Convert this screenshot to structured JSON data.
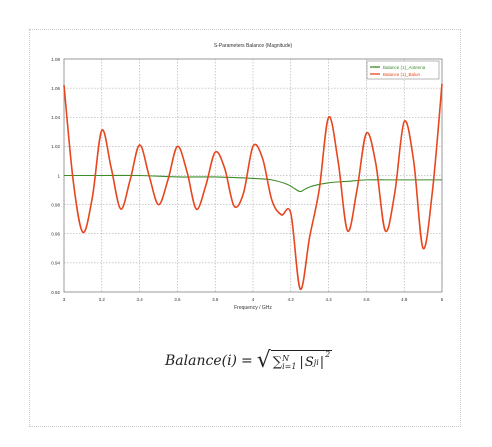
{
  "chart_data": {
    "type": "line",
    "title": "S-Parameters Balance (Magnitude)",
    "xlabel": "Frequency / GHz",
    "ylabel": "",
    "xlim": [
      3,
      5
    ],
    "ylim": [
      0.92,
      1.08
    ],
    "xticks": [
      "3",
      "3.2",
      "3.4",
      "3.6",
      "3.8",
      "4",
      "4.2",
      "4.4",
      "4.6",
      "4.8",
      "5"
    ],
    "yticks": [
      "0.92",
      "0.94",
      "0.96",
      "0.98",
      "1",
      "1.02",
      "1.04",
      "1.06",
      "1.08"
    ],
    "grid": true,
    "legend_position": "top-right",
    "series": [
      {
        "name": "Balance (1)_Antenna",
        "color": "#3c8c28",
        "x": [
          3.0,
          3.2,
          3.4,
          3.6,
          3.8,
          4.0,
          4.1,
          4.18,
          4.22,
          4.25,
          4.28,
          4.32,
          4.4,
          4.5,
          4.6,
          4.7,
          4.8,
          4.9,
          5.0
        ],
        "y": [
          1.0,
          1.0,
          1.0,
          0.999,
          0.999,
          0.998,
          0.997,
          0.994,
          0.991,
          0.989,
          0.991,
          0.993,
          0.995,
          0.996,
          0.997,
          0.997,
          0.997,
          0.997,
          0.997
        ]
      },
      {
        "name": "Balance (1)_Balun",
        "color": "#e8461e",
        "x": [
          3.0,
          3.05,
          3.1,
          3.15,
          3.2,
          3.25,
          3.3,
          3.35,
          3.4,
          3.45,
          3.5,
          3.55,
          3.6,
          3.65,
          3.7,
          3.75,
          3.8,
          3.85,
          3.9,
          3.95,
          4.0,
          4.05,
          4.1,
          4.15,
          4.2,
          4.25,
          4.3,
          4.35,
          4.4,
          4.45,
          4.5,
          4.55,
          4.6,
          4.65,
          4.7,
          4.75,
          4.8,
          4.85,
          4.9,
          4.95,
          5.0
        ],
        "y": [
          1.062,
          0.995,
          0.961,
          0.985,
          1.031,
          1.005,
          0.977,
          0.997,
          1.021,
          1.0,
          0.98,
          0.997,
          1.02,
          1.003,
          0.977,
          0.993,
          1.016,
          1.005,
          0.979,
          0.988,
          1.02,
          1.012,
          0.983,
          0.973,
          0.974,
          0.922,
          0.958,
          0.99,
          1.04,
          1.01,
          0.962,
          0.99,
          1.029,
          1.008,
          0.962,
          0.988,
          1.037,
          1.01,
          0.95,
          0.99,
          1.063
        ]
      }
    ]
  },
  "formula": {
    "lhs": "Balance(i)",
    "eq": "=",
    "sum": "∑",
    "sub": "i=1",
    "sup": "N",
    "term": "S",
    "term_sub": "ji",
    "power": "2"
  }
}
